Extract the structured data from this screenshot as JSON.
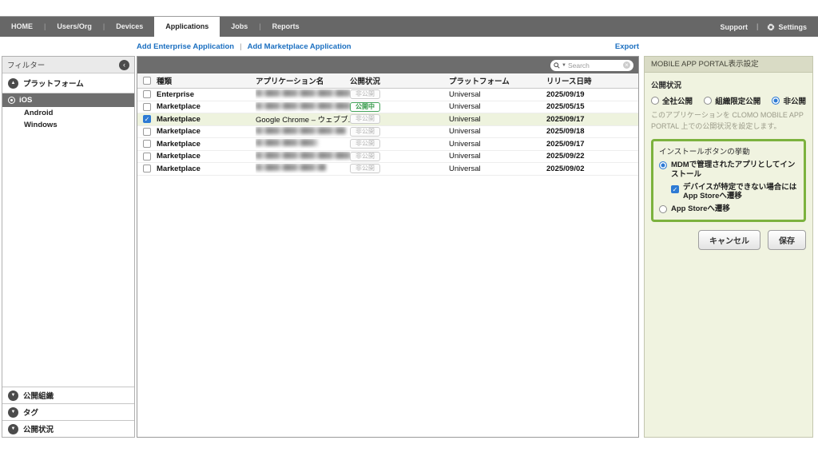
{
  "nav": {
    "tabs": [
      "HOME",
      "Users/Org",
      "Devices",
      "Applications",
      "Jobs",
      "Reports"
    ],
    "active_tab": "Applications",
    "support_label": "Support",
    "settings_label": "Settings"
  },
  "actions": {
    "add_enterprise": "Add Enterprise Application",
    "add_marketplace": "Add Marketplace Application",
    "export_label": "Export"
  },
  "sidebar": {
    "filter_title": "フィルター",
    "platform_section": "プラットフォーム",
    "platforms": [
      {
        "label": "iOS",
        "selected": true
      },
      {
        "label": "Android",
        "selected": false
      },
      {
        "label": "Windows",
        "selected": false
      }
    ],
    "bottom_sections": [
      "公開組織",
      "タグ",
      "公開状況"
    ]
  },
  "table": {
    "search_placeholder": "Search",
    "columns": [
      "種類",
      "アプリケーション名",
      "公開状況",
      "プラットフォーム",
      "リリース日時"
    ],
    "rows": [
      {
        "type": "Enterprise",
        "name": "",
        "name_blurred": true,
        "status": "非公開",
        "status_kind": "private",
        "platform": "Universal",
        "released": "2025/09/19",
        "checked": false,
        "selected": false
      },
      {
        "type": "Marketplace",
        "name": "",
        "name_blurred": true,
        "status": "公開中",
        "status_kind": "public",
        "platform": "Universal",
        "released": "2025/05/15",
        "checked": false,
        "selected": false
      },
      {
        "type": "Marketplace",
        "name": "Google Chrome – ウェブブ...",
        "name_blurred": false,
        "status": "非公開",
        "status_kind": "private",
        "platform": "Universal",
        "released": "2025/09/17",
        "checked": true,
        "selected": true
      },
      {
        "type": "Marketplace",
        "name": "",
        "name_blurred": true,
        "status": "非公開",
        "status_kind": "private",
        "platform": "Universal",
        "released": "2025/09/18",
        "checked": false,
        "selected": false
      },
      {
        "type": "Marketplace",
        "name": "",
        "name_blurred": true,
        "status": "非公開",
        "status_kind": "private",
        "platform": "Universal",
        "released": "2025/09/17",
        "checked": false,
        "selected": false
      },
      {
        "type": "Marketplace",
        "name": "",
        "name_blurred": true,
        "status": "非公開",
        "status_kind": "private",
        "platform": "Universal",
        "released": "2025/09/22",
        "checked": false,
        "selected": false
      },
      {
        "type": "Marketplace",
        "name": "",
        "name_blurred": true,
        "status": "非公開",
        "status_kind": "private",
        "platform": "Universal",
        "released": "2025/09/02",
        "checked": false,
        "selected": false
      }
    ]
  },
  "panel": {
    "title": "MOBILE APP PORTAL表示設定",
    "visibility": {
      "label": "公開状況",
      "options": [
        {
          "label": "全社公開",
          "selected": false
        },
        {
          "label": "組織限定公開",
          "selected": false
        },
        {
          "label": "非公開",
          "selected": true
        }
      ],
      "description": "このアプリケーションを CLOMO MOBILE APP PORTAL 上での公開状況を設定します。"
    },
    "install": {
      "label": "インストールボタンの挙動",
      "option_mdm": "MDMで管理されたアプリとしてインストール",
      "option_mdm_selected": true,
      "fallback_checkbox": "デバイスが特定できない場合にはApp Storeへ遷移",
      "fallback_checked": true,
      "option_appstore": "App Storeへ遷移",
      "option_appstore_selected": false
    },
    "cancel_label": "キャンセル",
    "save_label": "保存"
  },
  "colors": {
    "accent_green": "#7cb23e",
    "link_blue": "#1b6fc0",
    "selection_blue": "#2d7ad4",
    "badge_public_green": "#2f9644",
    "nav_gray": "#676767",
    "panel_beige": "#f0f3e0"
  }
}
